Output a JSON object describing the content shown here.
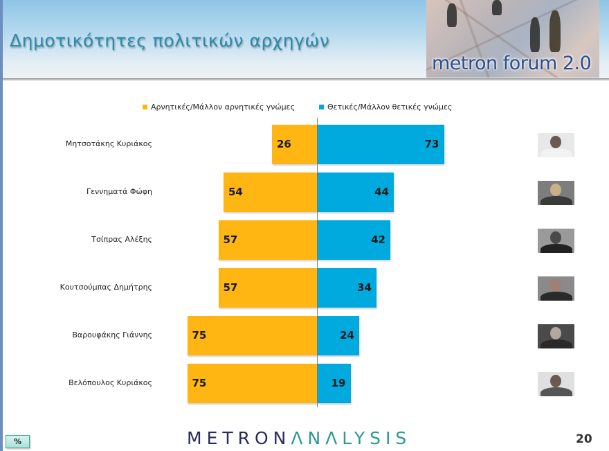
{
  "header": {
    "title": "Δημοτικότητες πολιτικών αρχηγών",
    "banner_text": "metron forum 2.0"
  },
  "legend": {
    "negative": {
      "label": "Αρνητικές/Μάλλον αρνητικές γνώμες",
      "color": "#ffb612"
    },
    "positive": {
      "label": "Θετικές/Μάλλον θετικές γνώμες",
      "color": "#00a9de"
    }
  },
  "rows": [
    {
      "name": "Μητσοτάκης Κυριάκος",
      "negative": "26",
      "positive": "73",
      "photo": "portrait-mitsotakis"
    },
    {
      "name": "Γεννηματά Φώφη",
      "negative": "54",
      "positive": "44",
      "photo": "portrait-gennimata"
    },
    {
      "name": "Τσίπρας Αλέξης",
      "negative": "57",
      "positive": "42",
      "photo": "portrait-tsipras"
    },
    {
      "name": "Κουτσούμπας Δημήτρης",
      "negative": "57",
      "positive": "34",
      "photo": "portrait-koutsoumpas"
    },
    {
      "name": "Βαρουφάκης Γιάννης",
      "negative": "75",
      "positive": "24",
      "photo": "portrait-varoufakis"
    },
    {
      "name": "Βελόπουλος Κυριάκος",
      "negative": "75",
      "positive": "19",
      "photo": "portrait-velopoulos"
    }
  ],
  "footer": {
    "logo_part1": "METRON",
    "logo_part2": "ΛNΛLYSIS",
    "page_number": "20",
    "unit_badge": "%"
  },
  "chart_data": {
    "type": "bar",
    "orientation": "horizontal-diverging",
    "title": "Δημοτικότητες πολιτικών αρχηγών",
    "categories": [
      "Μητσοτάκης Κυριάκος",
      "Γεννηματά Φώφη",
      "Τσίπρας Αλέξης",
      "Κουτσούμπας Δημήτρης",
      "Βαρουφάκης Γιάννης",
      "Βελόπουλος Κυριάκος"
    ],
    "series": [
      {
        "name": "Αρνητικές/Μάλλον αρνητικές γνώμες",
        "color": "#ffb612",
        "values": [
          26,
          54,
          57,
          57,
          75,
          75
        ]
      },
      {
        "name": "Θετικές/Μάλλον θετικές γνώμες",
        "color": "#00a9de",
        "values": [
          73,
          44,
          42,
          34,
          24,
          19
        ]
      }
    ],
    "unit": "%",
    "legend_position": "top",
    "grid": false,
    "xlabel": "",
    "ylabel": ""
  }
}
